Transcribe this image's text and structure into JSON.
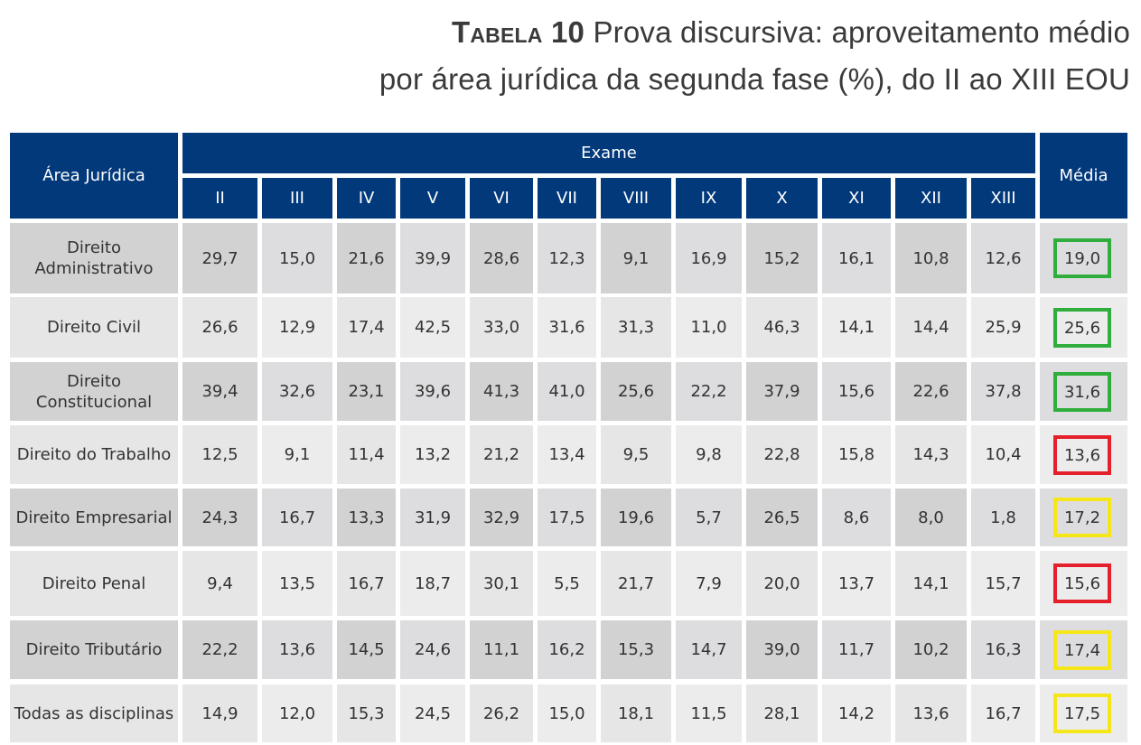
{
  "title": {
    "label": "Tabela 10",
    "line1": "Prova discursiva: aproveitamento médio",
    "line2": "por área jurídica da segunda fase (%), do II ao XIII EOU"
  },
  "table": {
    "area_header": "Área Jurídica",
    "exame_header": "Exame",
    "media_header": "Média",
    "exams": [
      "II",
      "III",
      "IV",
      "V",
      "VI",
      "VII",
      "VIII",
      "IX",
      "X",
      "XI",
      "XII",
      "XIII"
    ],
    "rows": [
      {
        "area": "Direito Administrativo",
        "values": [
          "29,7",
          "15,0",
          "21,6",
          "39,9",
          "28,6",
          "12,3",
          "9,1",
          "16,9",
          "15,2",
          "16,1",
          "10,8",
          "12,6"
        ],
        "media": "19,0",
        "media_color": "#2fae3d"
      },
      {
        "area": "Direito Civil",
        "values": [
          "26,6",
          "12,9",
          "17,4",
          "42,5",
          "33,0",
          "31,6",
          "31,3",
          "11,0",
          "46,3",
          "14,1",
          "14,4",
          "25,9"
        ],
        "media": "25,6",
        "media_color": "#2fae3d"
      },
      {
        "area": "Direito Constitucional",
        "values": [
          "39,4",
          "32,6",
          "23,1",
          "39,6",
          "41,3",
          "41,0",
          "25,6",
          "22,2",
          "37,9",
          "15,6",
          "22,6",
          "37,8"
        ],
        "media": "31,6",
        "media_color": "#2fae3d"
      },
      {
        "area": "Direito do Trabalho",
        "values": [
          "12,5",
          "9,1",
          "11,4",
          "13,2",
          "21,2",
          "13,4",
          "9,5",
          "9,8",
          "22,8",
          "15,8",
          "14,3",
          "10,4"
        ],
        "media": "13,6",
        "media_color": "#e4202a"
      },
      {
        "area": "Direito Empresarial",
        "values": [
          "24,3",
          "16,7",
          "13,3",
          "31,9",
          "32,9",
          "17,5",
          "19,6",
          "5,7",
          "26,5",
          "8,6",
          "8,0",
          "1,8"
        ],
        "media": "17,2",
        "media_color": "#f5e61a"
      },
      {
        "area": "Direito Penal",
        "values": [
          "9,4",
          "13,5",
          "16,7",
          "18,7",
          "30,1",
          "5,5",
          "21,7",
          "7,9",
          "20,0",
          "13,7",
          "14,1",
          "15,7"
        ],
        "media": "15,6",
        "media_color": "#e4202a"
      },
      {
        "area": "Direito Tributário",
        "values": [
          "22,2",
          "13,6",
          "14,5",
          "24,6",
          "11,1",
          "16,2",
          "15,3",
          "14,7",
          "39,0",
          "11,7",
          "10,2",
          "16,3"
        ],
        "media": "17,4",
        "media_color": "#f5e61a"
      },
      {
        "area": "Todas as disciplinas",
        "values": [
          "14,9",
          "12,0",
          "15,3",
          "24,5",
          "26,2",
          "15,0",
          "18,1",
          "11,5",
          "28,1",
          "14,2",
          "13,6",
          "16,7"
        ],
        "media": "17,5",
        "media_color": "#f5e61a"
      }
    ]
  }
}
